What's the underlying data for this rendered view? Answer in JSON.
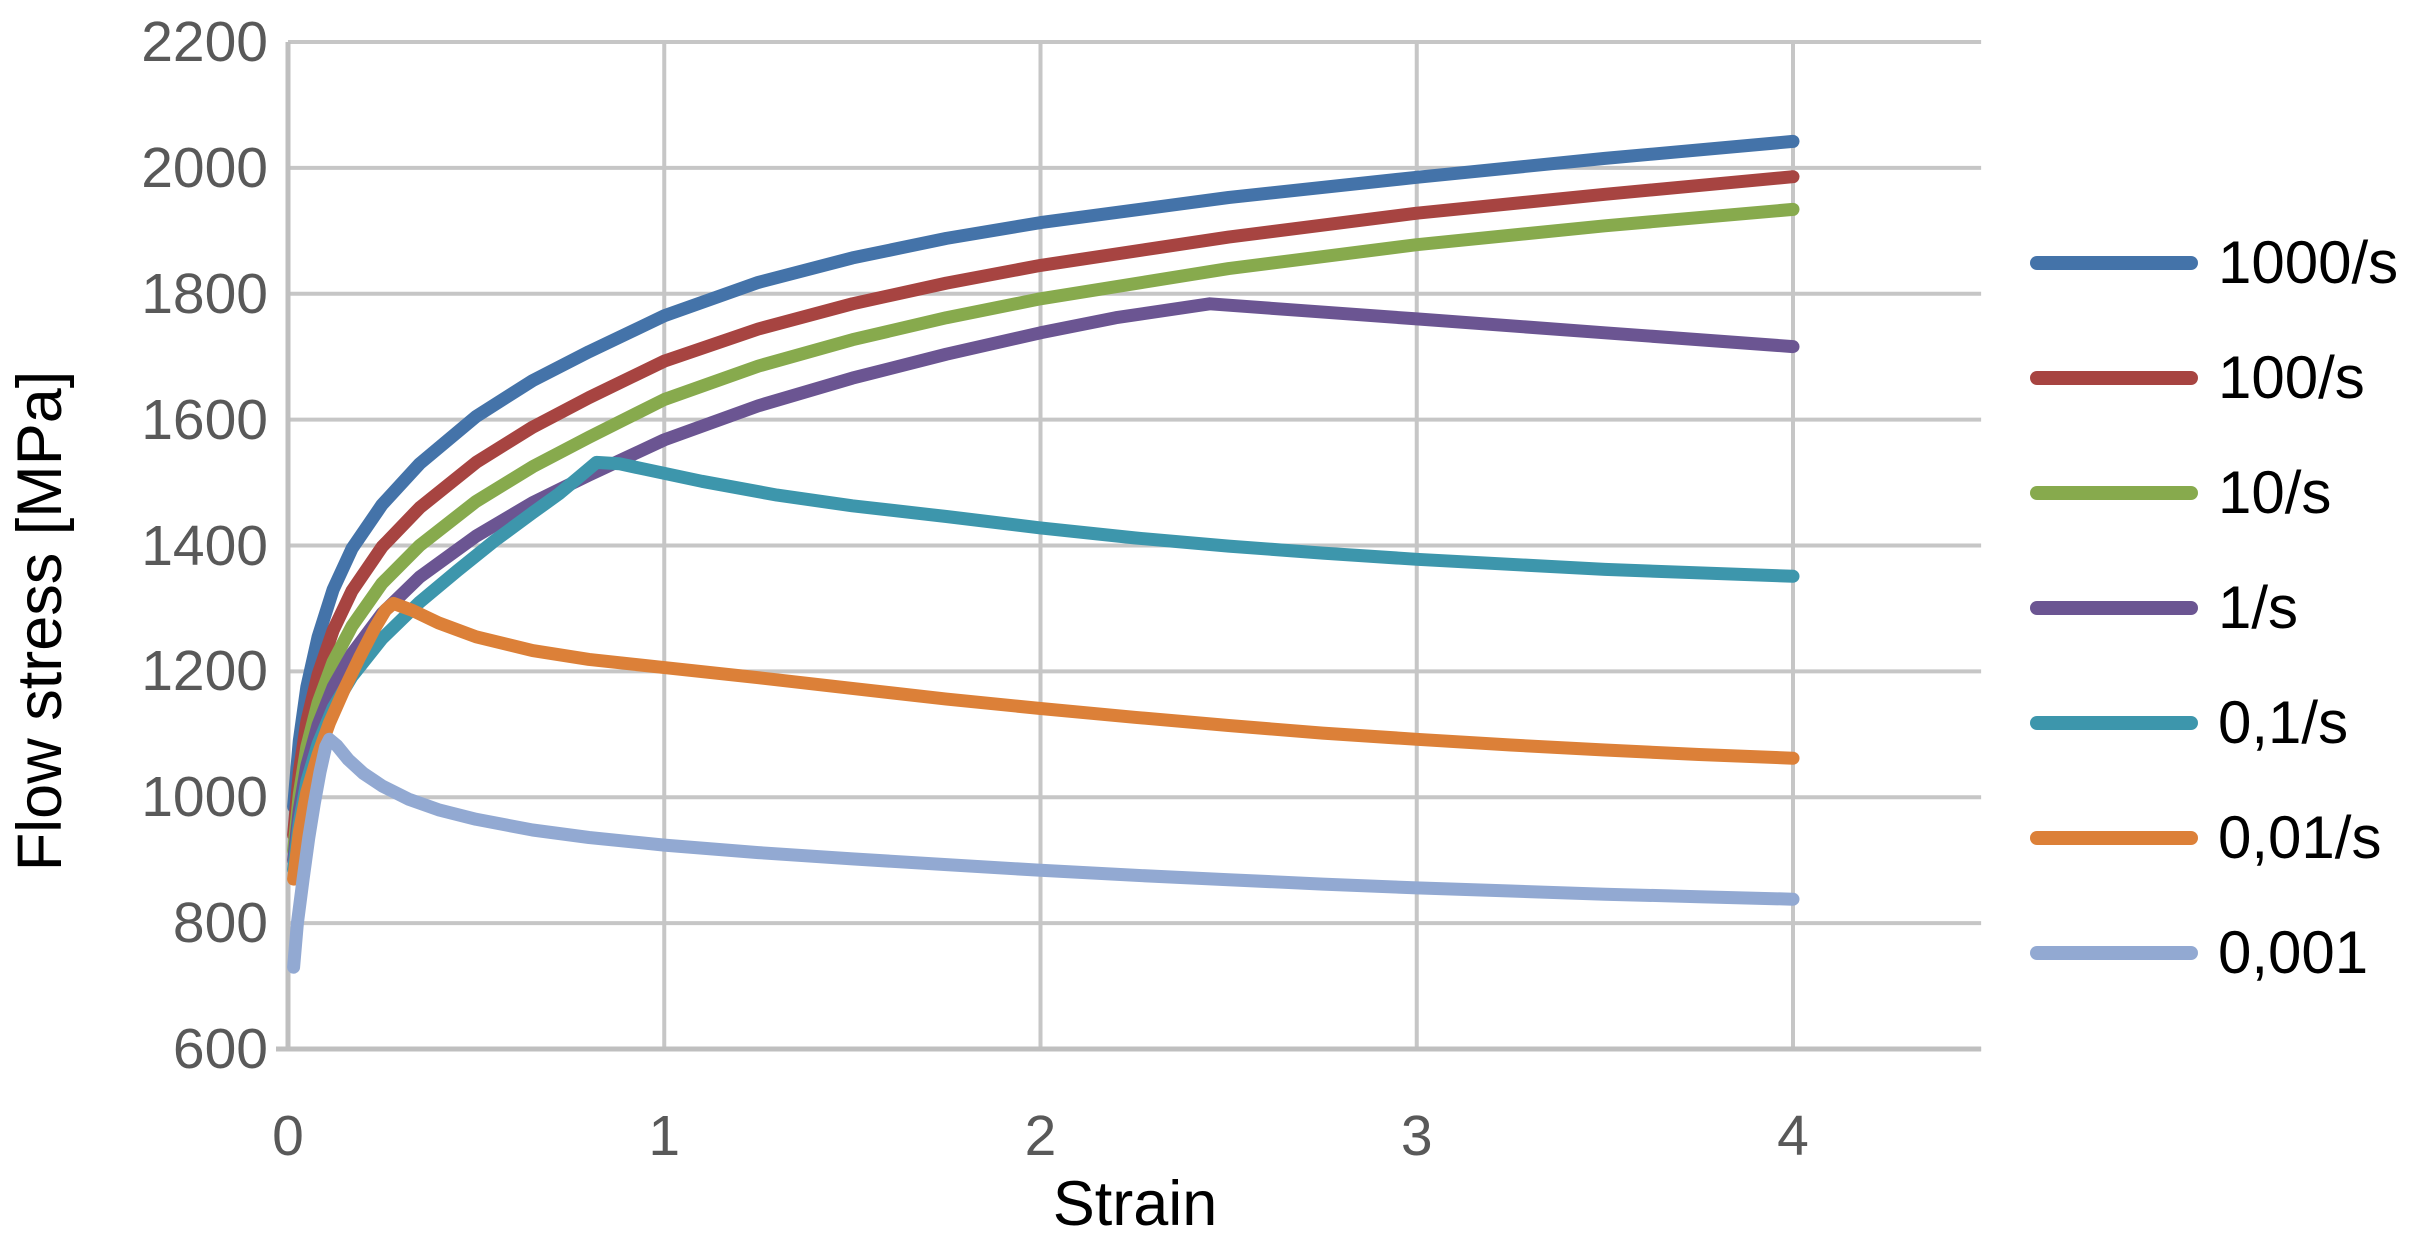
{
  "chart_data": {
    "type": "line",
    "title": "",
    "xlabel": "Strain",
    "ylabel": "Flow stress [MPa]",
    "xlim": [
      0,
      4.5
    ],
    "ylim": [
      600,
      2200
    ],
    "x_ticks": [
      0,
      1,
      2,
      3,
      4
    ],
    "y_ticks": [
      2200,
      2000,
      1800,
      1600,
      1400,
      1200,
      1000,
      800,
      600
    ],
    "grid": true,
    "legend_position": "right",
    "colors": {
      "gridline": "#c6c6c6",
      "axis_line": "#bfbfbf",
      "tick_label": "#595959",
      "axis_title": "#000000"
    },
    "series": [
      {
        "name": "1000/s",
        "color": "#4473A9",
        "points": [
          [
            0.015,
            985
          ],
          [
            0.03,
            1090
          ],
          [
            0.05,
            1175
          ],
          [
            0.08,
            1255
          ],
          [
            0.12,
            1330
          ],
          [
            0.17,
            1395
          ],
          [
            0.25,
            1465
          ],
          [
            0.35,
            1530
          ],
          [
            0.5,
            1605
          ],
          [
            0.65,
            1662
          ],
          [
            0.8,
            1708
          ],
          [
            1.0,
            1765
          ],
          [
            1.25,
            1818
          ],
          [
            1.5,
            1857
          ],
          [
            1.75,
            1888
          ],
          [
            2.0,
            1913
          ],
          [
            2.5,
            1953
          ],
          [
            3.0,
            1985
          ],
          [
            3.5,
            2015
          ],
          [
            4.0,
            2042
          ]
        ]
      },
      {
        "name": "100/s",
        "color": "#A74441",
        "points": [
          [
            0.015,
            940
          ],
          [
            0.03,
            1040
          ],
          [
            0.05,
            1120
          ],
          [
            0.08,
            1195
          ],
          [
            0.12,
            1265
          ],
          [
            0.17,
            1328
          ],
          [
            0.25,
            1398
          ],
          [
            0.35,
            1460
          ],
          [
            0.5,
            1532
          ],
          [
            0.65,
            1588
          ],
          [
            0.8,
            1635
          ],
          [
            1.0,
            1693
          ],
          [
            1.25,
            1744
          ],
          [
            1.5,
            1784
          ],
          [
            1.75,
            1817
          ],
          [
            2.0,
            1845
          ],
          [
            2.5,
            1890
          ],
          [
            3.0,
            1928
          ],
          [
            3.5,
            1958
          ],
          [
            4.0,
            1986
          ]
        ]
      },
      {
        "name": "10/s",
        "color": "#87AA4D",
        "points": [
          [
            0.015,
            915
          ],
          [
            0.03,
            1005
          ],
          [
            0.05,
            1080
          ],
          [
            0.08,
            1150
          ],
          [
            0.12,
            1215
          ],
          [
            0.17,
            1272
          ],
          [
            0.25,
            1340
          ],
          [
            0.35,
            1400
          ],
          [
            0.5,
            1470
          ],
          [
            0.65,
            1525
          ],
          [
            0.8,
            1572
          ],
          [
            1.0,
            1632
          ],
          [
            1.25,
            1685
          ],
          [
            1.5,
            1727
          ],
          [
            1.75,
            1762
          ],
          [
            2.0,
            1792
          ],
          [
            2.5,
            1840
          ],
          [
            3.0,
            1878
          ],
          [
            3.5,
            1908
          ],
          [
            4.0,
            1934
          ]
        ]
      },
      {
        "name": "1/s",
        "color": "#6B5592",
        "points": [
          [
            0.015,
            900
          ],
          [
            0.03,
            980
          ],
          [
            0.05,
            1050
          ],
          [
            0.08,
            1115
          ],
          [
            0.12,
            1175
          ],
          [
            0.17,
            1228
          ],
          [
            0.25,
            1292
          ],
          [
            0.35,
            1350
          ],
          [
            0.5,
            1415
          ],
          [
            0.65,
            1468
          ],
          [
            0.8,
            1512
          ],
          [
            1.0,
            1568
          ],
          [
            1.25,
            1622
          ],
          [
            1.5,
            1666
          ],
          [
            1.75,
            1704
          ],
          [
            2.0,
            1738
          ],
          [
            2.2,
            1762
          ],
          [
            2.45,
            1784
          ],
          [
            2.7,
            1773
          ],
          [
            3.0,
            1760
          ],
          [
            3.5,
            1738
          ],
          [
            4.0,
            1716
          ]
        ]
      },
      {
        "name": "0,1/s",
        "color": "#3D96AC",
        "points": [
          [
            0.015,
            885
          ],
          [
            0.03,
            960
          ],
          [
            0.05,
            1025
          ],
          [
            0.08,
            1085
          ],
          [
            0.12,
            1142
          ],
          [
            0.17,
            1192
          ],
          [
            0.25,
            1252
          ],
          [
            0.35,
            1310
          ],
          [
            0.45,
            1360
          ],
          [
            0.55,
            1408
          ],
          [
            0.65,
            1452
          ],
          [
            0.72,
            1482
          ],
          [
            0.78,
            1512
          ],
          [
            0.82,
            1532
          ],
          [
            0.88,
            1530
          ],
          [
            0.95,
            1521
          ],
          [
            1.1,
            1502
          ],
          [
            1.3,
            1480
          ],
          [
            1.5,
            1463
          ],
          [
            1.75,
            1446
          ],
          [
            2.0,
            1428
          ],
          [
            2.25,
            1412
          ],
          [
            2.5,
            1399
          ],
          [
            2.75,
            1388
          ],
          [
            3.0,
            1378
          ],
          [
            3.5,
            1362
          ],
          [
            4.0,
            1351
          ]
        ]
      },
      {
        "name": "0,01/s",
        "color": "#DC8038",
        "points": [
          [
            0.015,
            870
          ],
          [
            0.03,
            945
          ],
          [
            0.05,
            1008
          ],
          [
            0.08,
            1068
          ],
          [
            0.11,
            1118
          ],
          [
            0.15,
            1172
          ],
          [
            0.19,
            1222
          ],
          [
            0.23,
            1268
          ],
          [
            0.26,
            1298
          ],
          [
            0.28,
            1308
          ],
          [
            0.33,
            1297
          ],
          [
            0.4,
            1277
          ],
          [
            0.5,
            1255
          ],
          [
            0.65,
            1233
          ],
          [
            0.8,
            1219
          ],
          [
            1.0,
            1206
          ],
          [
            1.25,
            1190
          ],
          [
            1.5,
            1173
          ],
          [
            1.75,
            1156
          ],
          [
            2.0,
            1141
          ],
          [
            2.25,
            1127
          ],
          [
            2.5,
            1114
          ],
          [
            2.75,
            1102
          ],
          [
            3.0,
            1092
          ],
          [
            3.25,
            1083
          ],
          [
            3.5,
            1075
          ],
          [
            3.75,
            1068
          ],
          [
            4.0,
            1062
          ]
        ]
      },
      {
        "name": "0,001",
        "color": "#92A9D2",
        "points": [
          [
            0.015,
            730
          ],
          [
            0.025,
            800
          ],
          [
            0.04,
            870
          ],
          [
            0.055,
            935
          ],
          [
            0.07,
            990
          ],
          [
            0.085,
            1040
          ],
          [
            0.1,
            1080
          ],
          [
            0.11,
            1092
          ],
          [
            0.13,
            1082
          ],
          [
            0.16,
            1060
          ],
          [
            0.2,
            1038
          ],
          [
            0.25,
            1018
          ],
          [
            0.32,
            997
          ],
          [
            0.4,
            980
          ],
          [
            0.5,
            965
          ],
          [
            0.65,
            948
          ],
          [
            0.8,
            936
          ],
          [
            1.0,
            924
          ],
          [
            1.25,
            912
          ],
          [
            1.5,
            902
          ],
          [
            1.75,
            893
          ],
          [
            2.0,
            884
          ],
          [
            2.25,
            876
          ],
          [
            2.5,
            869
          ],
          [
            2.75,
            862
          ],
          [
            3.0,
            856
          ],
          [
            3.25,
            851
          ],
          [
            3.5,
            846
          ],
          [
            3.75,
            842
          ],
          [
            4.0,
            838
          ]
        ]
      }
    ]
  }
}
